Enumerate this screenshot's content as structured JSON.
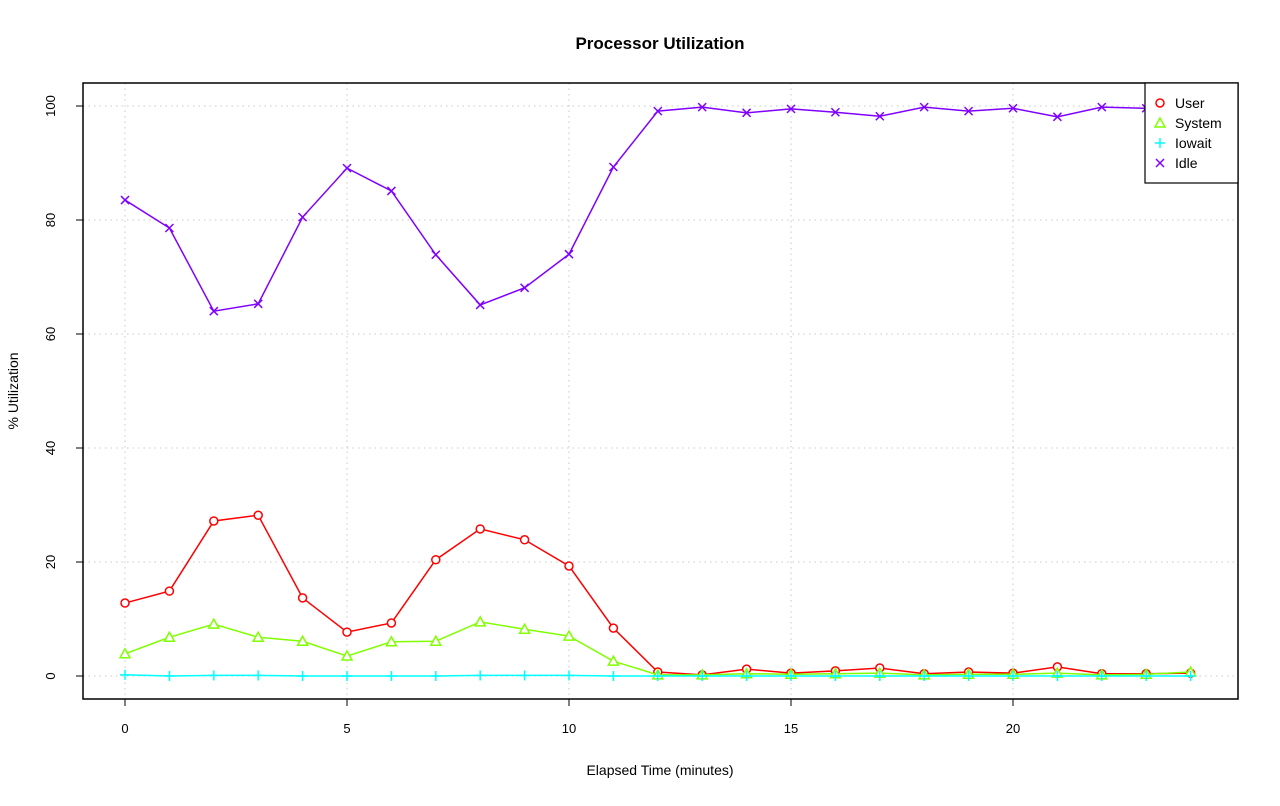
{
  "chart_data": {
    "type": "line",
    "title": "Processor Utilization",
    "xlabel": "Elapsed Time (minutes)",
    "ylabel": "% Utilization",
    "xlim": [
      0,
      24
    ],
    "ylim": [
      0,
      100
    ],
    "xticks": [
      0,
      5,
      10,
      15,
      20
    ],
    "yticks": [
      0,
      20,
      40,
      60,
      80,
      100
    ],
    "grid": true,
    "legend_position": "top-right",
    "x": [
      0,
      1,
      2,
      3,
      4,
      5,
      6,
      7,
      8,
      9,
      10,
      11,
      12,
      13,
      14,
      15,
      16,
      17,
      18,
      19,
      20,
      21,
      22,
      23,
      24
    ],
    "series": [
      {
        "name": "User",
        "color": "#ff0000",
        "marker": "circle",
        "values": [
          12.8,
          14.9,
          27.2,
          28.2,
          13.7,
          7.7,
          9.3,
          20.4,
          25.8,
          23.9,
          19.3,
          8.4,
          0.7,
          0.2,
          1.2,
          0.5,
          0.9,
          1.4,
          0.4,
          0.7,
          0.5,
          1.6,
          0.4,
          0.4,
          0.5
        ]
      },
      {
        "name": "System",
        "color": "#80ff00",
        "marker": "triangle",
        "values": [
          3.9,
          6.8,
          9.1,
          6.8,
          6.1,
          3.5,
          6.0,
          6.1,
          9.5,
          8.2,
          7.0,
          2.6,
          0.2,
          0.2,
          0.4,
          0.3,
          0.4,
          0.5,
          0.2,
          0.3,
          0.3,
          0.5,
          0.2,
          0.3,
          0.7
        ]
      },
      {
        "name": "Iowait",
        "color": "#00ffff",
        "marker": "plus",
        "values": [
          0.2,
          0.0,
          0.1,
          0.1,
          0.0,
          0.0,
          0.0,
          0.0,
          0.1,
          0.1,
          0.1,
          0.0,
          0.0,
          0.0,
          0.0,
          0.0,
          0.0,
          0.0,
          0.0,
          0.0,
          0.0,
          0.0,
          0.0,
          0.0,
          0.0
        ]
      },
      {
        "name": "Idle",
        "color": "#8000ff",
        "marker": "cross",
        "values": [
          83.5,
          78.6,
          64.0,
          65.3,
          80.5,
          89.1,
          85.1,
          73.9,
          65.1,
          68.1,
          74.0,
          89.3,
          99.1,
          99.8,
          98.8,
          99.5,
          98.9,
          98.2,
          99.8,
          99.1,
          99.6,
          98.1,
          99.8,
          99.6,
          99.1
        ]
      }
    ]
  }
}
